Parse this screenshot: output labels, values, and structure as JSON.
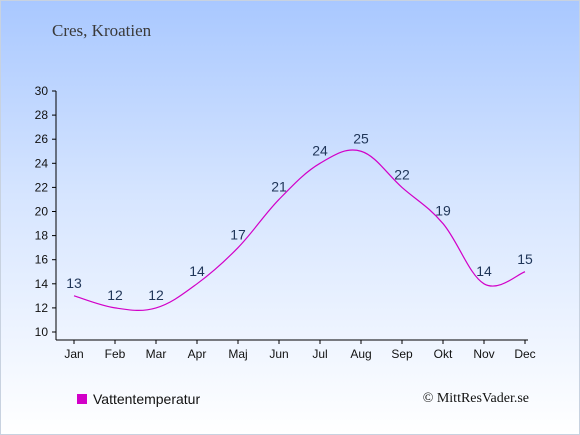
{
  "header": {
    "title": "Cres, Kroatien"
  },
  "legend": {
    "label": "Vattentemperatur",
    "color": "#d200c8"
  },
  "credit": "© MittResVader.se",
  "chart_data": {
    "type": "line",
    "categories": [
      "Jan",
      "Feb",
      "Mar",
      "Apr",
      "Maj",
      "Jun",
      "Jul",
      "Aug",
      "Sep",
      "Okt",
      "Nov",
      "Dec"
    ],
    "series": [
      {
        "name": "Vattentemperatur",
        "values": [
          13,
          12,
          12,
          14,
          17,
          21,
          24,
          25,
          22,
          19,
          14,
          15
        ],
        "color": "#d200c8"
      }
    ],
    "ylim": [
      10,
      30
    ],
    "yticks": [
      10,
      12,
      14,
      16,
      18,
      20,
      22,
      24,
      26,
      28,
      30
    ],
    "grid": false,
    "legend_position": "bottom-left"
  }
}
